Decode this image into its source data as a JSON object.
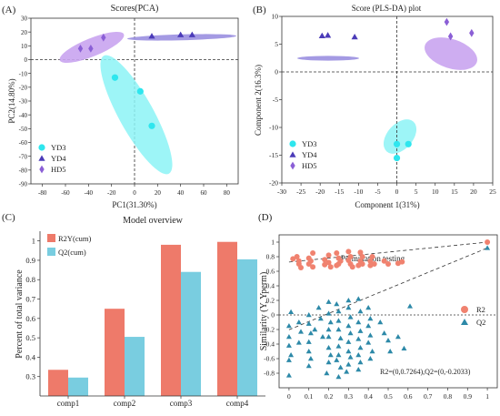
{
  "colors": {
    "yd3": "#2ee6ee",
    "yd4": "#4b3bb8",
    "hd5": "#8b5fd6",
    "ellipse_yd3": "#8cf3f6",
    "ellipse_yd4": "#9a8fe0",
    "ellipse_hd5": "#c9a4f0",
    "r2": "#f0826f",
    "q2": "#2d89a8",
    "bar_r2y": "#ee7a6a",
    "bar_q2": "#79cde0"
  },
  "chart_data": [
    {
      "panel_label": "(A)",
      "type": "scatter",
      "title": "Scores(PCA)",
      "xlabel": "PC1(31.30%)",
      "ylabel": "PC2(14.80%)",
      "xlim": [
        -90,
        90
      ],
      "ylim": [
        -90,
        30
      ],
      "xticks": [
        -80,
        -60,
        -40,
        -20,
        0,
        20,
        40,
        60,
        80
      ],
      "yticks": [
        30,
        20,
        10,
        0,
        -10,
        -20,
        -30,
        -40,
        -50,
        -60,
        -70,
        -80,
        -90
      ],
      "legend_position": "bottom-left",
      "series": [
        {
          "name": "YD3",
          "marker": "circle",
          "points": [
            [
              -17,
              -13
            ],
            [
              5,
              -23
            ],
            [
              15,
              -48
            ]
          ]
        },
        {
          "name": "YD4",
          "marker": "triangle",
          "points": [
            [
              15,
              17
            ],
            [
              40,
              18
            ],
            [
              50,
              18
            ]
          ]
        },
        {
          "name": "HD5",
          "marker": "diamond",
          "points": [
            [
              -47,
              8
            ],
            [
              -38,
              8
            ],
            [
              -27,
              16
            ]
          ]
        }
      ]
    },
    {
      "panel_label": "(B)",
      "type": "scatter",
      "title": "Score (PLS-DA) plot",
      "xlabel": "Component 1(31%)",
      "ylabel": "Component 2(16.3%)",
      "xlim": [
        -30,
        25
      ],
      "ylim": [
        -20,
        10
      ],
      "xticks": [
        -30,
        -25,
        -20,
        -15,
        -10,
        -5,
        0,
        5,
        10,
        15,
        20,
        25
      ],
      "yticks": [
        10,
        5,
        0,
        -5,
        -10,
        -15,
        -20
      ],
      "legend_position": "bottom-left",
      "series": [
        {
          "name": "YD3",
          "marker": "circle",
          "points": [
            [
              0,
              -13
            ],
            [
              3,
              -13
            ],
            [
              0,
              -15.5
            ]
          ]
        },
        {
          "name": "YD4",
          "marker": "triangle",
          "points": [
            [
              -19.5,
              6.5
            ],
            [
              -18,
              6.6
            ],
            [
              -11,
              6.3
            ]
          ]
        },
        {
          "name": "HD5",
          "marker": "diamond",
          "points": [
            [
              13,
              9
            ],
            [
              14,
              6.4
            ],
            [
              19.5,
              7
            ]
          ]
        }
      ]
    },
    {
      "panel_label": "(C)",
      "type": "bar",
      "title": "Model overview",
      "xlabel": "",
      "ylabel": "Percent of total variance",
      "ylim": [
        0.2,
        1.05
      ],
      "yticks": [
        0.3,
        0.4,
        0.5,
        0.6,
        0.7,
        0.8,
        0.9,
        1.0
      ],
      "ytick_labels": [
        "0.3",
        "0.4",
        "0.5",
        "0.6",
        "0.7",
        "0.8",
        "0.9",
        "1"
      ],
      "categories": [
        "comp1",
        "comp2",
        "comp3",
        "comp4"
      ],
      "legend_position": "top-left",
      "series": [
        {
          "name": "R2Y(cum)",
          "values": [
            0.335,
            0.65,
            0.98,
            0.995
          ]
        },
        {
          "name": "Q2(cum)",
          "values": [
            0.295,
            0.505,
            0.84,
            0.905
          ]
        }
      ]
    },
    {
      "panel_label": "(D)",
      "type": "scatter",
      "title": "Permutation testing",
      "xlabel": "",
      "ylabel": "Similarity (Y, Yperm)",
      "xlim": [
        -0.05,
        1.05
      ],
      "ylim": [
        -1.0,
        1.1
      ],
      "xticks": [
        0,
        0.1,
        0.2,
        0.3,
        0.4,
        0.5,
        0.6,
        0.7,
        0.8,
        0.9,
        1
      ],
      "yticks": [
        1,
        0.8,
        0.6,
        0.4,
        0.2,
        0,
        -0.2,
        -0.4,
        -0.6,
        -0.8
      ],
      "legend_position": "right",
      "annotation": "R2=(0,0.7264),Q2=(0,-0.2033)",
      "regression_lines": [
        {
          "name": "R2",
          "intercept": 0.7264,
          "end": [
            1,
            1.0
          ]
        },
        {
          "name": "Q2",
          "intercept": -0.2033,
          "end": [
            1,
            0.92
          ]
        }
      ],
      "series": [
        {
          "name": "R2",
          "marker": "circle",
          "points": [
            [
              0.04,
              0.8
            ],
            [
              0.05,
              0.74
            ],
            [
              0.05,
              0.7
            ],
            [
              0.06,
              0.65
            ],
            [
              0.02,
              0.77
            ],
            [
              0.1,
              0.78
            ],
            [
              0.1,
              0.7
            ],
            [
              0.12,
              0.85
            ],
            [
              0.12,
              0.66
            ],
            [
              0.11,
              0.74
            ],
            [
              0.18,
              0.76
            ],
            [
              0.18,
              0.69
            ],
            [
              0.2,
              0.82
            ],
            [
              0.2,
              0.72
            ],
            [
              0.21,
              0.66
            ],
            [
              0.24,
              0.85
            ],
            [
              0.25,
              0.78
            ],
            [
              0.25,
              0.7
            ],
            [
              0.26,
              0.74
            ],
            [
              0.24,
              0.68
            ],
            [
              0.3,
              0.87
            ],
            [
              0.31,
              0.8
            ],
            [
              0.3,
              0.75
            ],
            [
              0.31,
              0.7
            ],
            [
              0.32,
              0.66
            ],
            [
              0.36,
              0.86
            ],
            [
              0.37,
              0.8
            ],
            [
              0.36,
              0.74
            ],
            [
              0.37,
              0.7
            ],
            [
              0.35,
              0.68
            ],
            [
              0.42,
              0.8
            ],
            [
              0.41,
              0.74
            ],
            [
              0.43,
              0.7
            ],
            [
              0.41,
              0.68
            ],
            [
              0.48,
              0.74
            ],
            [
              0.5,
              0.7
            ],
            [
              0.55,
              0.71
            ],
            [
              0.57,
              0.73
            ],
            [
              1.0,
              1.0
            ]
          ]
        },
        {
          "name": "Q2",
          "marker": "triangle",
          "points": [
            [
              0.0,
              -0.15
            ],
            [
              0.0,
              -0.3
            ],
            [
              0.0,
              -0.42
            ],
            [
              0.01,
              -0.55
            ],
            [
              0.0,
              -0.62
            ],
            [
              0.0,
              -0.83
            ],
            [
              0.01,
              0.04
            ],
            [
              0.05,
              -0.1
            ],
            [
              0.06,
              -0.23
            ],
            [
              0.05,
              -0.38
            ],
            [
              0.1,
              0.0
            ],
            [
              0.1,
              -0.12
            ],
            [
              0.11,
              -0.25
            ],
            [
              0.1,
              -0.37
            ],
            [
              0.1,
              -0.5
            ],
            [
              0.11,
              -0.6
            ],
            [
              0.1,
              -0.7
            ],
            [
              0.13,
              -0.2
            ],
            [
              0.15,
              0.1
            ],
            [
              0.16,
              -0.05
            ],
            [
              0.17,
              -0.3
            ],
            [
              0.2,
              0.18
            ],
            [
              0.2,
              0.02
            ],
            [
              0.21,
              -0.1
            ],
            [
              0.2,
              -0.2
            ],
            [
              0.2,
              -0.3
            ],
            [
              0.2,
              -0.45
            ],
            [
              0.21,
              -0.55
            ],
            [
              0.2,
              -0.65
            ],
            [
              0.19,
              -0.8
            ],
            [
              0.24,
              0.15
            ],
            [
              0.25,
              0.05
            ],
            [
              0.25,
              -0.08
            ],
            [
              0.25,
              -0.2
            ],
            [
              0.26,
              -0.32
            ],
            [
              0.25,
              -0.43
            ],
            [
              0.25,
              -0.55
            ],
            [
              0.24,
              -0.62
            ],
            [
              0.26,
              -0.72
            ],
            [
              0.25,
              -0.85
            ],
            [
              0.3,
              0.2
            ],
            [
              0.3,
              0.1
            ],
            [
              0.31,
              -0.03
            ],
            [
              0.3,
              -0.15
            ],
            [
              0.31,
              -0.25
            ],
            [
              0.3,
              -0.37
            ],
            [
              0.3,
              -0.5
            ],
            [
              0.31,
              -0.58
            ],
            [
              0.3,
              -0.68
            ],
            [
              0.29,
              -0.78
            ],
            [
              0.35,
              0.22
            ],
            [
              0.36,
              0.05
            ],
            [
              0.35,
              -0.1
            ],
            [
              0.36,
              -0.22
            ],
            [
              0.35,
              -0.33
            ],
            [
              0.36,
              -0.45
            ],
            [
              0.35,
              -0.55
            ],
            [
              0.36,
              -0.65
            ],
            [
              0.35,
              -0.75
            ],
            [
              0.4,
              0.1
            ],
            [
              0.41,
              -0.05
            ],
            [
              0.4,
              -0.15
            ],
            [
              0.41,
              -0.28
            ],
            [
              0.4,
              -0.38
            ],
            [
              0.42,
              -0.5
            ],
            [
              0.41,
              -0.6
            ],
            [
              0.46,
              -0.1
            ],
            [
              0.48,
              -0.25
            ],
            [
              0.5,
              -0.35
            ],
            [
              0.51,
              -0.5
            ],
            [
              0.55,
              -0.3
            ],
            [
              0.58,
              -0.46
            ],
            [
              0.61,
              0.12
            ],
            [
              1.0,
              0.92
            ]
          ]
        }
      ]
    }
  ]
}
